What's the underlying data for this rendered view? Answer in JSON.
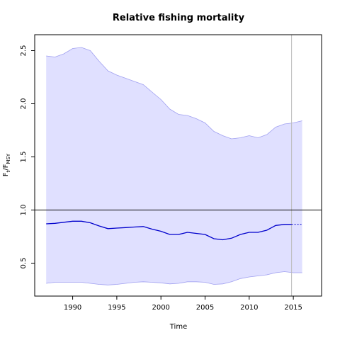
{
  "chart_data": {
    "type": "line",
    "title": "Relative fishing mortality",
    "xlabel": "Time",
    "ylabel_main": "F",
    "ylabel_sub1": "t",
    "ylabel_sep": "/F",
    "ylabel_sub2": "MSY",
    "xlim": [
      1985.7,
      2018.2
    ],
    "ylim": [
      0.19,
      2.65
    ],
    "x_ticks": [
      1990,
      1995,
      2000,
      2005,
      2010,
      2015
    ],
    "y_ticks": [
      0.5,
      1.0,
      1.5,
      2.0,
      2.5
    ],
    "grid": false,
    "reference_line_y": 1.0,
    "reference_line_x": 2014.8,
    "colors": {
      "line": "#0000cc",
      "band": "#e0e0ff",
      "band_edge": "#a0a0f0",
      "ref_v": "#bbbbbb",
      "ref_h": "#000000"
    },
    "series": [
      {
        "x": [
          1987,
          1988,
          1989,
          1990,
          1991,
          1992,
          1993,
          1994,
          1995,
          1996,
          1997,
          1998,
          1999,
          2000,
          2001,
          2002,
          2003,
          2004,
          2005,
          2006,
          2007,
          2008,
          2009,
          2010,
          2011,
          2012,
          2013,
          2014,
          2014.8
        ],
        "values": [
          0.87,
          0.875,
          0.885,
          0.895,
          0.895,
          0.88,
          0.85,
          0.825,
          0.83,
          0.835,
          0.84,
          0.845,
          0.82,
          0.8,
          0.77,
          0.77,
          0.79,
          0.78,
          0.77,
          0.73,
          0.72,
          0.735,
          0.77,
          0.79,
          0.79,
          0.81,
          0.855,
          0.865,
          0.865
        ]
      },
      {
        "style": "projection",
        "x": [
          2014.8,
          2016
        ],
        "values": [
          0.865,
          0.865
        ]
      }
    ],
    "band_upper": {
      "x": [
        1987,
        1988,
        1989,
        1990,
        1991,
        1992,
        1993,
        1994,
        1995,
        1996,
        1997,
        1998,
        1999,
        2000,
        2001,
        2002,
        2003,
        2004,
        2005,
        2006,
        2007,
        2008,
        2009,
        2010,
        2011,
        2012,
        2013,
        2014,
        2015,
        2016
      ],
      "values": [
        2.45,
        2.44,
        2.47,
        2.52,
        2.53,
        2.5,
        2.4,
        2.31,
        2.27,
        2.24,
        2.21,
        2.18,
        2.11,
        2.04,
        1.95,
        1.9,
        1.89,
        1.86,
        1.82,
        1.74,
        1.7,
        1.67,
        1.68,
        1.7,
        1.68,
        1.71,
        1.78,
        1.81,
        1.82,
        1.84
      ]
    },
    "band_lower": {
      "x": [
        1987,
        1988,
        1989,
        1990,
        1991,
        1992,
        1993,
        1994,
        1995,
        1996,
        1997,
        1998,
        1999,
        2000,
        2001,
        2002,
        2003,
        2004,
        2005,
        2006,
        2007,
        2008,
        2009,
        2010,
        2011,
        2012,
        2013,
        2014,
        2015,
        2016
      ],
      "values": [
        0.31,
        0.32,
        0.32,
        0.32,
        0.32,
        0.31,
        0.3,
        0.295,
        0.3,
        0.31,
        0.32,
        0.325,
        0.32,
        0.315,
        0.305,
        0.31,
        0.325,
        0.325,
        0.32,
        0.3,
        0.305,
        0.325,
        0.355,
        0.37,
        0.38,
        0.39,
        0.41,
        0.42,
        0.41,
        0.41
      ]
    }
  }
}
